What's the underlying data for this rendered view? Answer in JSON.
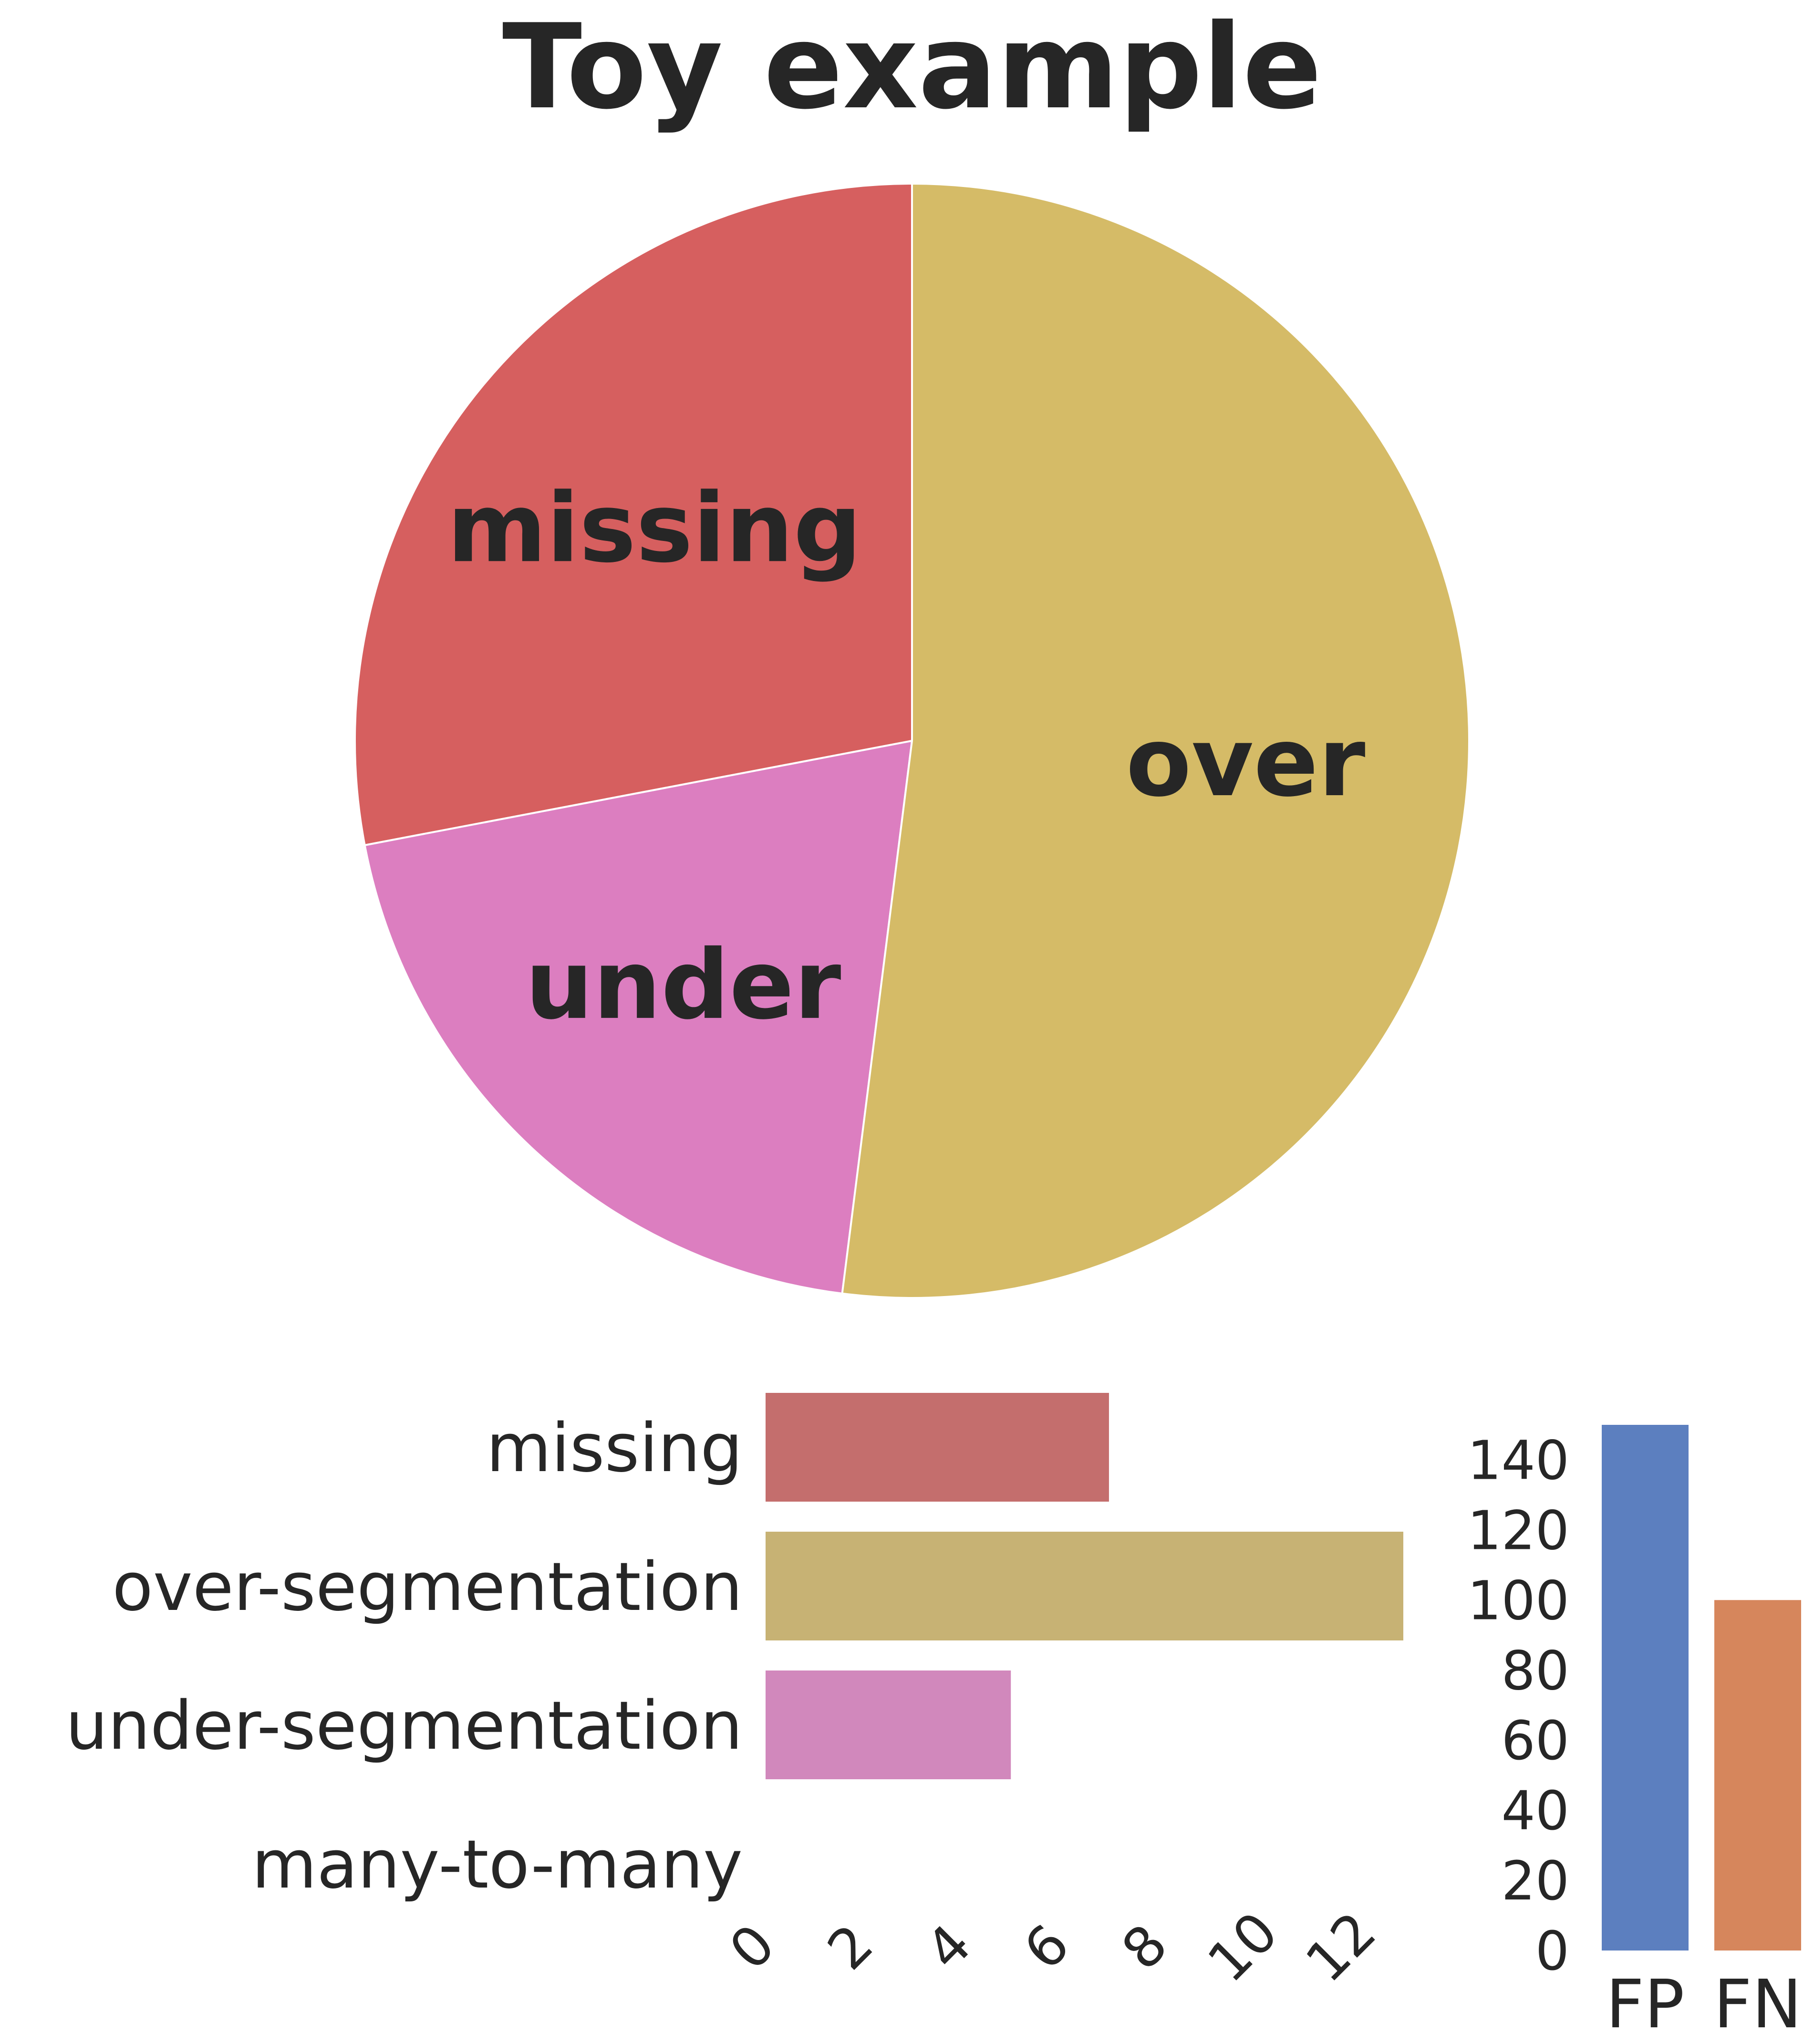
{
  "colors": {
    "missing": "#d65f5f",
    "over": "#d5bb67",
    "under": "#dc7ec0",
    "missing_bar": "#c46e6d",
    "over_bar": "#c7b274",
    "under_bar": "#d188bc",
    "fp": "#5c7fbf",
    "fn": "#d6865c",
    "text": "#262626"
  },
  "chart_data": [
    {
      "type": "pie",
      "title": "Toy example",
      "labels": [
        "missing",
        "under",
        "over"
      ],
      "values": [
        7,
        5,
        13
      ]
    },
    {
      "type": "bar",
      "orientation": "horizontal",
      "categories": [
        "missing",
        "over-segmentation",
        "under-segmentation",
        "many-to-many"
      ],
      "values": [
        7,
        13,
        5,
        0
      ],
      "xlim": [
        0,
        13
      ],
      "xticks": [
        "0",
        "2",
        "4",
        "6",
        "8",
        "10",
        "12"
      ],
      "grid": false
    },
    {
      "type": "bar",
      "orientation": "vertical",
      "categories": [
        "FP",
        "FN"
      ],
      "values": [
        150,
        100
      ],
      "ylim": [
        0,
        150
      ],
      "yticks": [
        "0",
        "20",
        "40",
        "60",
        "80",
        "100",
        "120",
        "140"
      ],
      "grid": false
    }
  ]
}
